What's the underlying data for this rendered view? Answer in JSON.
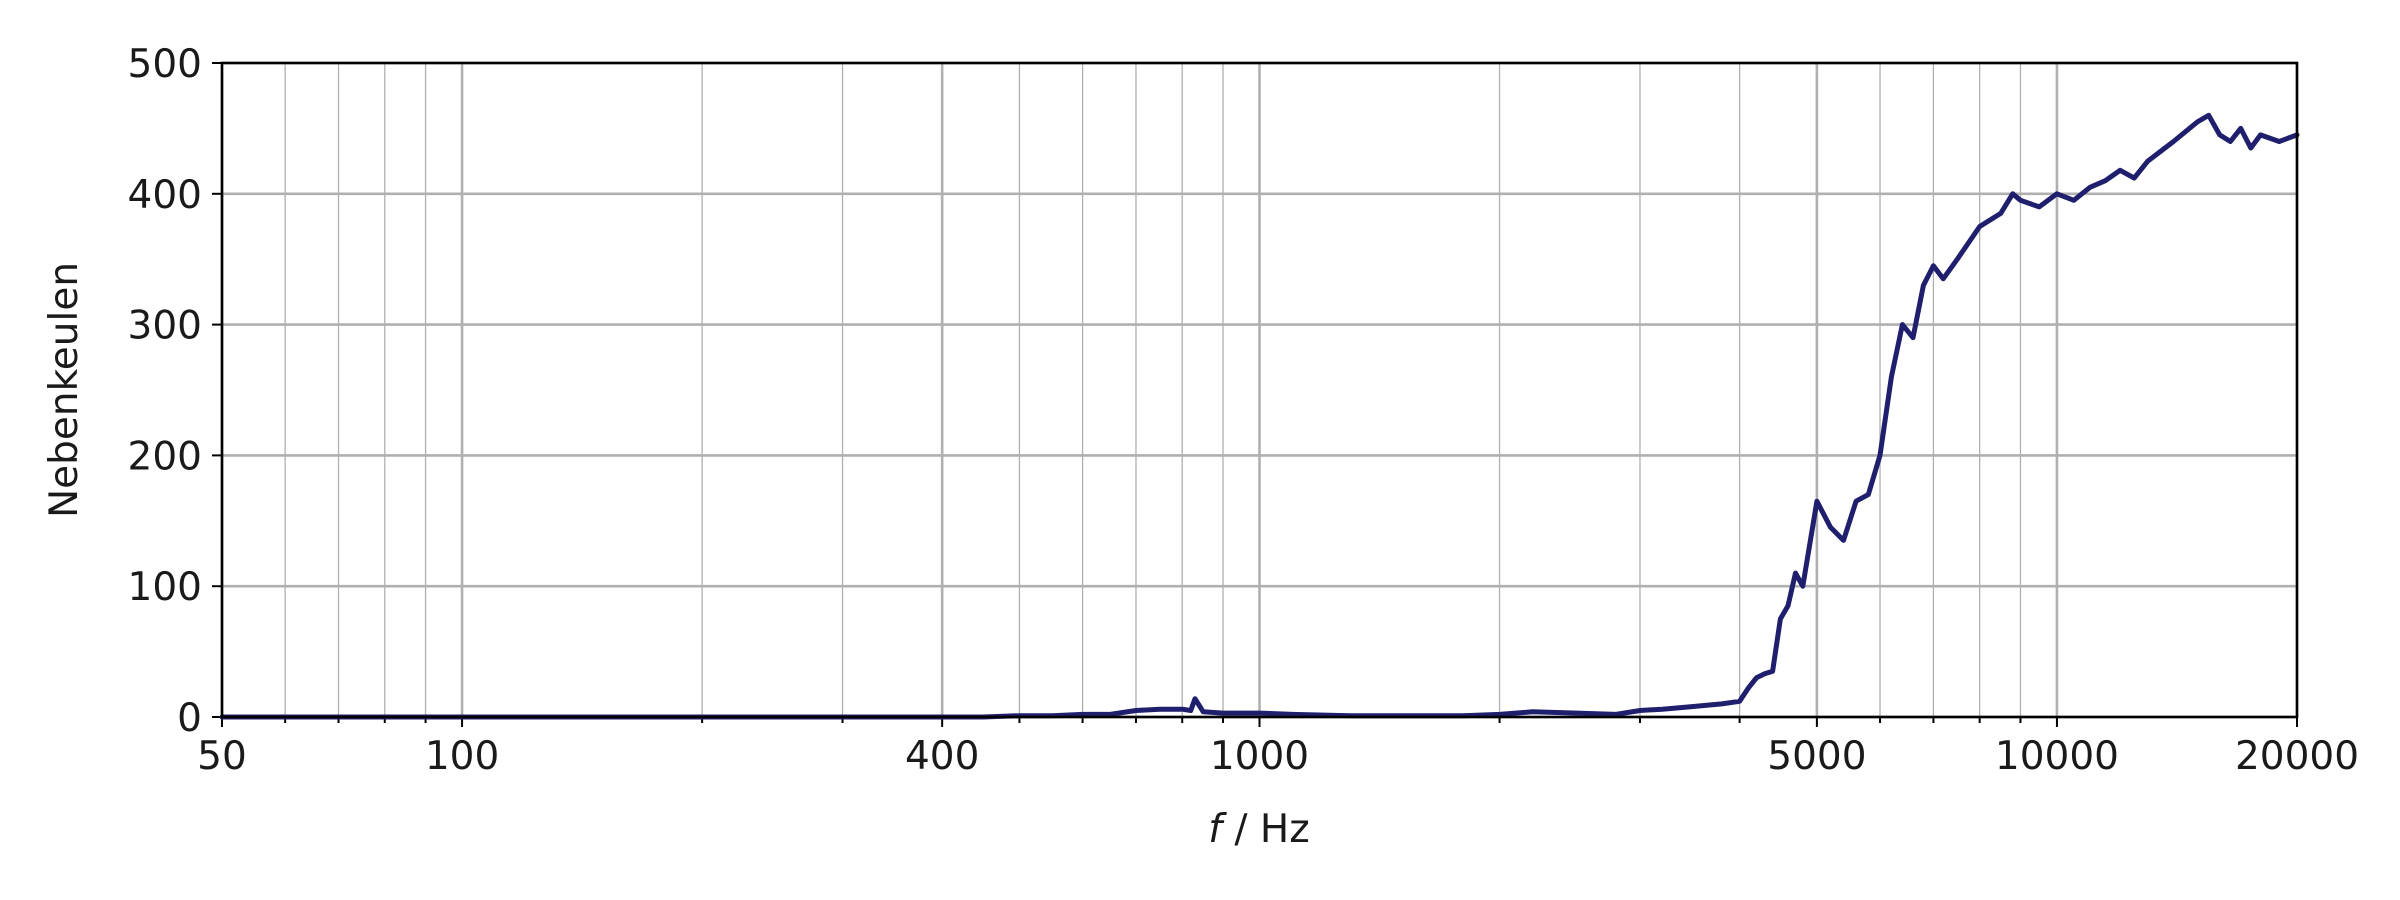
{
  "chart_data": {
    "type": "line",
    "title": "",
    "xlabel_var": "f",
    "xlabel_unit": " / Hz",
    "ylabel": "Nebenkeulen",
    "xscale": "log",
    "xlim": [
      50,
      20000
    ],
    "ylim": [
      0,
      500
    ],
    "grid": true,
    "legend": "none",
    "line_color": "#1f1f6e",
    "x_major_ticks": [
      50,
      100,
      400,
      1000,
      5000,
      10000,
      20000
    ],
    "x_tick_labels": [
      "50",
      "100",
      "400",
      "1000",
      "5000",
      "10000",
      "20000"
    ],
    "x_minor_ticks": [
      60,
      70,
      80,
      90,
      200,
      300,
      500,
      600,
      700,
      800,
      900,
      2000,
      3000,
      4000,
      6000,
      7000,
      8000,
      9000
    ],
    "y_ticks": [
      0,
      100,
      200,
      300,
      400,
      500
    ],
    "y_tick_labels": [
      "0",
      "100",
      "200",
      "300",
      "400",
      "500"
    ],
    "series": [
      {
        "x": [
          50,
          100,
          300,
          400,
          450,
          500,
          550,
          600,
          650,
          700,
          750,
          800,
          820,
          830,
          850,
          900,
          1000,
          1100,
          1300,
          1500,
          1800,
          2000,
          2200,
          2500,
          2800,
          3000,
          3200,
          3500,
          3800,
          4000,
          4100,
          4200,
          4300,
          4400,
          4500,
          4600,
          4700,
          4800,
          5000,
          5200,
          5400,
          5600,
          5800,
          6000,
          6200,
          6400,
          6600,
          6800,
          7000,
          7200,
          7500,
          8000,
          8500,
          8800,
          9000,
          9500,
          10000,
          10500,
          11000,
          11500,
          12000,
          12500,
          13000,
          14000,
          15000,
          15500,
          16000,
          16500,
          17000,
          17500,
          18000,
          19000,
          20000
        ],
        "y": [
          0,
          0,
          0,
          0,
          0,
          1,
          1,
          2,
          2,
          5,
          6,
          6,
          5,
          14,
          4,
          3,
          3,
          2,
          1,
          1,
          1,
          2,
          4,
          3,
          2,
          5,
          6,
          8,
          10,
          12,
          22,
          30,
          33,
          35,
          75,
          85,
          110,
          100,
          165,
          145,
          135,
          165,
          170,
          200,
          260,
          300,
          290,
          330,
          345,
          335,
          350,
          375,
          385,
          400,
          395,
          390,
          400,
          395,
          405,
          410,
          418,
          412,
          425,
          440,
          455,
          460,
          445,
          440,
          450,
          435,
          445,
          440,
          445
        ]
      }
    ]
  }
}
